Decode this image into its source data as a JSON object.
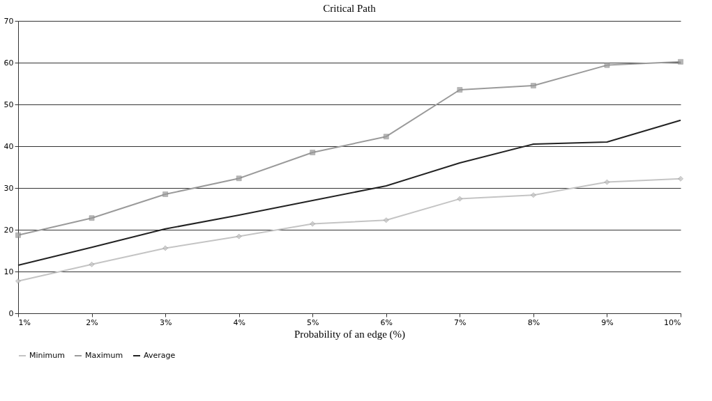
{
  "chart_data": {
    "type": "line",
    "title": "Critical Path",
    "xlabel": "Probability of an edge (%)",
    "categories": [
      "1%",
      "2%",
      "3%",
      "4%",
      "5%",
      "6%",
      "7%",
      "8%",
      "9%",
      "10%"
    ],
    "series": [
      {
        "name": "Minimum",
        "color": "#c4c4c4",
        "marker": "diamond",
        "values": [
          7.7,
          11.7,
          15.6,
          18.4,
          21.4,
          22.3,
          27.4,
          28.3,
          31.4,
          32.2
        ]
      },
      {
        "name": "Maximum",
        "color": "#9a9a9a",
        "marker": "square",
        "values": [
          18.7,
          22.8,
          28.5,
          32.3,
          38.5,
          42.3,
          53.5,
          54.5,
          59.4,
          60.2
        ]
      },
      {
        "name": "Average",
        "color": "#222222",
        "marker": "none",
        "values": [
          11.5,
          15.8,
          20.2,
          23.5,
          27.0,
          30.5,
          36.0,
          40.5,
          41.0,
          46.2
        ]
      }
    ],
    "ylim": [
      0,
      70
    ],
    "yticks": [
      0,
      10,
      20,
      30,
      40,
      50,
      60,
      70
    ],
    "grid": "y",
    "legend": "bottom"
  }
}
